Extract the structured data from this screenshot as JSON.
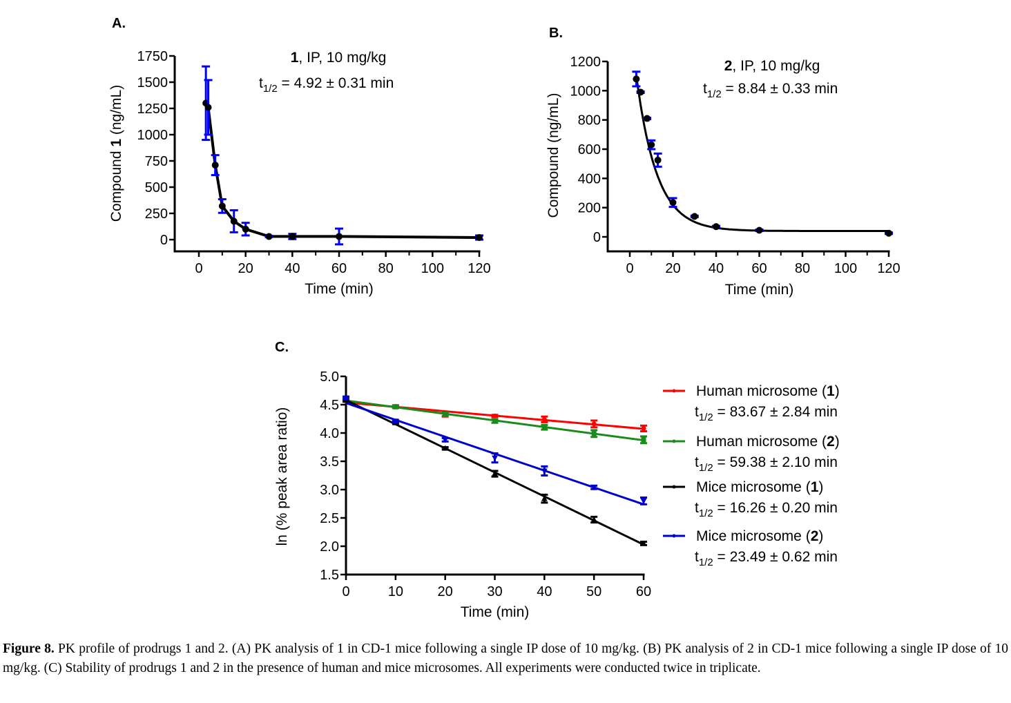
{
  "figure": {
    "caption_label": "Figure 8.",
    "caption_text": "PK profile of prodrugs 1 and 2. (A) PK analysis of 1 in CD-1 mice following a single IP dose of 10 mg/kg. (B) PK analysis of 2 in CD-1 mice following a single IP dose of 10 mg/kg. (C) Stability of prodrugs 1 and 2 in the presence of human and mice microsomes. All experiments were conducted twice in triplicate."
  },
  "chart_data": [
    {
      "id": "A",
      "panel_label": "A.",
      "type": "line",
      "title_compound": "1",
      "title_rest": ", IP, 10 mg/kg",
      "halflife_prefix": "t",
      "halflife_sub": "1/2",
      "halflife_text": " = 4.92 ± 0.31 min",
      "xlabel": "Time (min)",
      "ylabel_prefix": "Compound ",
      "ylabel_bold": "1",
      "ylabel_suffix": " (ng/mL)",
      "xlim": [
        -10,
        120
      ],
      "ylim": [
        -100,
        1750
      ],
      "xticks": [
        0,
        20,
        40,
        60,
        80,
        100,
        120
      ],
      "xticks_minor": [
        10,
        30,
        50,
        70,
        90,
        110
      ],
      "yticks": [
        0,
        250,
        500,
        750,
        1000,
        1250,
        1500,
        1750
      ],
      "series": [
        {
          "name": "Compound 1",
          "line_color": "#000000",
          "error_color": "#0000ff",
          "x": [
            3,
            4,
            7,
            10,
            15,
            20,
            30,
            40,
            60,
            120
          ],
          "y": [
            1300,
            1260,
            710,
            320,
            175,
            100,
            30,
            30,
            30,
            20
          ],
          "err": [
            350,
            260,
            95,
            65,
            105,
            60,
            5,
            25,
            75,
            20
          ]
        }
      ]
    },
    {
      "id": "B",
      "panel_label": "B.",
      "type": "line",
      "title_compound": "2",
      "title_rest": ", IP, 10 mg/kg",
      "halflife_prefix": "t",
      "halflife_sub": "1/2",
      "halflife_text": " = 8.84 ± 0.33 min",
      "xlabel": "Time (min)",
      "ylabel_prefix": "Compound (ng/mL)",
      "ylabel_bold": "",
      "ylabel_suffix": "",
      "xlim": [
        -10,
        120
      ],
      "ylim": [
        -100,
        1200
      ],
      "xticks": [
        0,
        20,
        40,
        60,
        80,
        100,
        120
      ],
      "xticks_minor": [
        10,
        30,
        50,
        70,
        90,
        110
      ],
      "yticks": [
        0,
        200,
        400,
        600,
        800,
        1000,
        1200
      ],
      "series": [
        {
          "name": "Compound 2",
          "line_color": "#000000",
          "error_color": "#0000ff",
          "x": [
            3,
            5,
            8,
            10,
            13,
            20,
            30,
            40,
            60,
            120
          ],
          "y": [
            1080,
            990,
            810,
            630,
            525,
            235,
            140,
            70,
            45,
            25
          ],
          "err": [
            50,
            5,
            5,
            30,
            45,
            30,
            5,
            5,
            5,
            5
          ],
          "fit": {
            "model": "one-phase decay",
            "y0": 1500,
            "plateau": 40,
            "k": 0.105
          }
        }
      ]
    },
    {
      "id": "C",
      "panel_label": "C.",
      "type": "line",
      "xlabel": "Time (min)",
      "ylabel": "ln (% peak area ratio)",
      "xlim": [
        0,
        60
      ],
      "ylim": [
        1.5,
        5.0
      ],
      "xticks": [
        0,
        10,
        20,
        30,
        40,
        50,
        60
      ],
      "yticks": [
        1.5,
        2.0,
        2.5,
        3.0,
        3.5,
        4.0,
        4.5,
        5.0
      ],
      "legend_position": "right",
      "series": [
        {
          "name_prefix": "Human microsome (",
          "name_bold": "1",
          "name_suffix": ")",
          "halflife_text": " = 83.67 ± 2.84 min",
          "color": "#ff0000",
          "marker": "circle",
          "x": [
            0,
            10,
            20,
            30,
            40,
            50,
            60
          ],
          "y": [
            4.57,
            4.47,
            4.32,
            4.3,
            4.24,
            4.16,
            4.08
          ],
          "err": [
            0.02,
            0.02,
            0.03,
            0.02,
            0.05,
            0.06,
            0.05
          ]
        },
        {
          "name_prefix": "Human microsome (",
          "name_bold": "2",
          "name_suffix": ")",
          "halflife_text": " = 59.38 ± 2.10 min",
          "color": "#1a8a1a",
          "marker": "square",
          "x": [
            0,
            10,
            20,
            30,
            40,
            50,
            60
          ],
          "y": [
            4.58,
            4.46,
            4.33,
            4.21,
            4.1,
            3.99,
            3.88
          ],
          "err": [
            0.02,
            0.02,
            0.03,
            0.03,
            0.04,
            0.06,
            0.06
          ]
        },
        {
          "name_prefix": "Mice microsome (",
          "name_bold": "1",
          "name_suffix": ")",
          "halflife_text": " = 16.26 ± 0.20 min",
          "color": "#000000",
          "marker": "triangle-up",
          "x": [
            0,
            10,
            20,
            30,
            40,
            50,
            60
          ],
          "y": [
            4.58,
            4.18,
            3.73,
            3.28,
            2.84,
            2.47,
            2.05
          ],
          "err": [
            0.02,
            0.02,
            0.02,
            0.05,
            0.07,
            0.05,
            0.03
          ]
        },
        {
          "name_prefix": "Mice microsome (",
          "name_bold": "2",
          "name_suffix": ")",
          "halflife_text": " = 23.49 ± 0.62 min",
          "color": "#0000cc",
          "marker": "triangle-down",
          "x": [
            0,
            10,
            20,
            30,
            40,
            50,
            60
          ],
          "y": [
            4.62,
            4.21,
            3.88,
            3.56,
            3.33,
            3.04,
            2.8
          ],
          "err": [
            0.02,
            0.02,
            0.03,
            0.08,
            0.08,
            0.03,
            0.06
          ]
        }
      ],
      "halflife_prefix": "t",
      "halflife_sub": "1/2"
    }
  ]
}
